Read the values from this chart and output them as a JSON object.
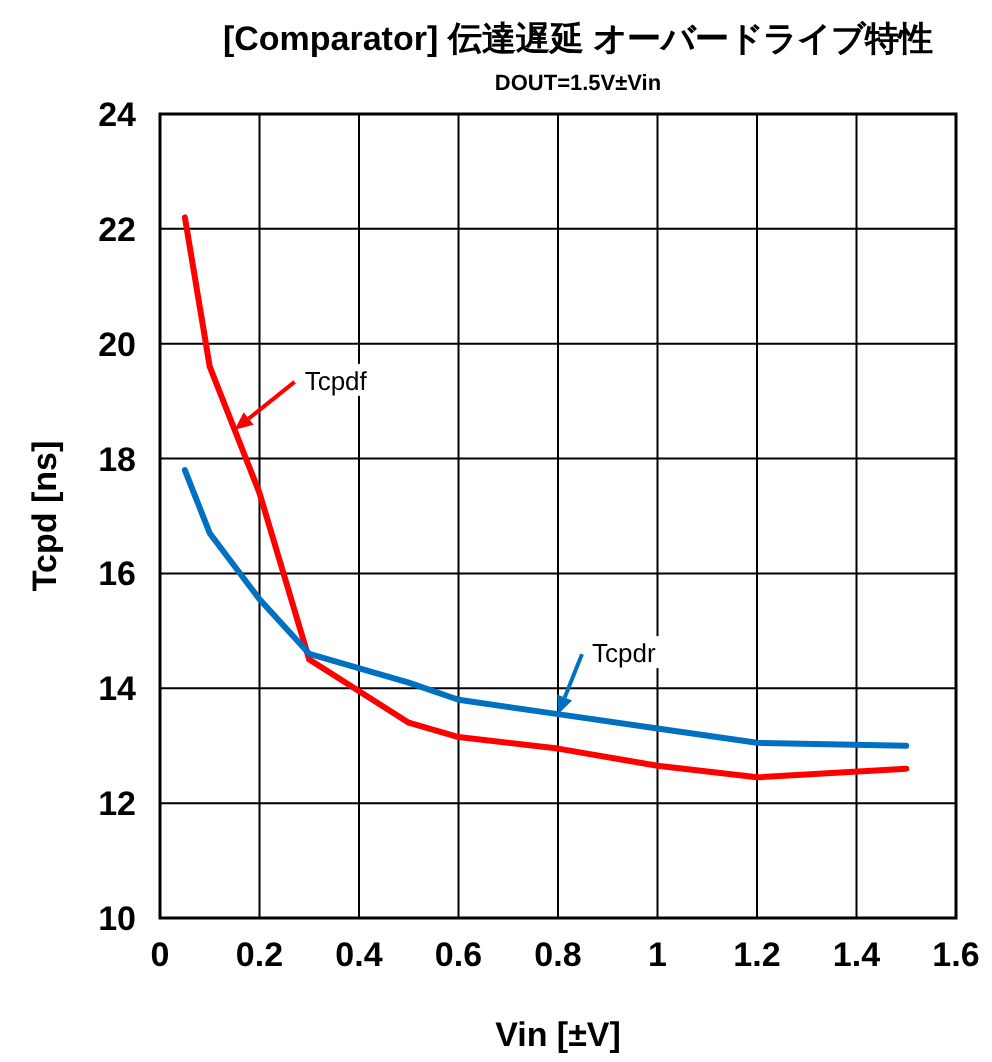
{
  "chart_data": {
    "type": "line",
    "title": "[Comparator] 伝達遅延 オーバードライブ特性",
    "subtitle": "DOUT=1.5V±Vin",
    "xlabel": "Vin [±V]",
    "ylabel": "Tcpd [ns]",
    "x": [
      0.05,
      0.1,
      0.2,
      0.3,
      0.5,
      0.6,
      0.8,
      1.0,
      1.2,
      1.5
    ],
    "series": [
      {
        "name": "Tcpdf",
        "color": "#ff0000",
        "values": [
          22.2,
          19.6,
          17.4,
          14.5,
          13.4,
          13.15,
          12.95,
          12.65,
          12.45,
          12.6
        ]
      },
      {
        "name": "Tcpdr",
        "color": "#0070c0",
        "values": [
          17.8,
          16.7,
          15.55,
          14.6,
          14.1,
          13.8,
          13.55,
          13.3,
          13.05,
          13.0
        ]
      }
    ],
    "xlim": [
      0,
      1.6
    ],
    "xticks": [
      0,
      0.2,
      0.4,
      0.6,
      0.8,
      1.0,
      1.2,
      1.4,
      1.6
    ],
    "ylim": [
      10,
      24
    ],
    "yticks": [
      10,
      12,
      14,
      16,
      18,
      20,
      22,
      24
    ],
    "grid": true,
    "marker": "none",
    "line_style": "solid"
  }
}
